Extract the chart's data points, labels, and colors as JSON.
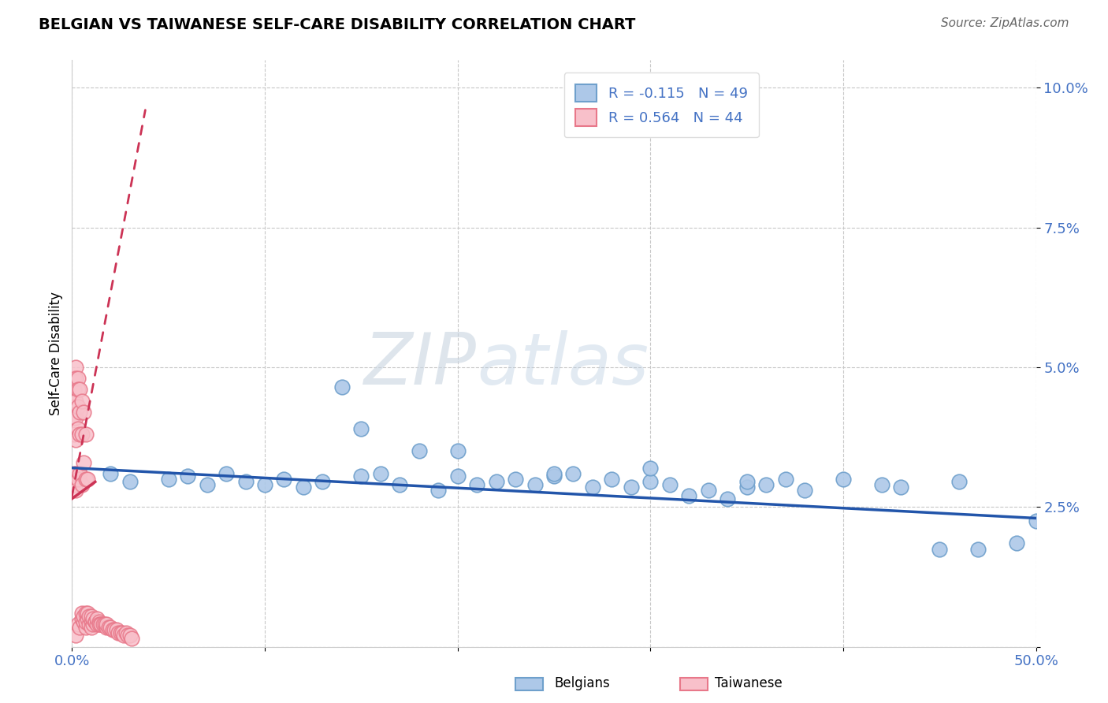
{
  "title": "BELGIAN VS TAIWANESE SELF-CARE DISABILITY CORRELATION CHART",
  "source": "Source: ZipAtlas.com",
  "ylabel": "Self-Care Disability",
  "xlim": [
    0.0,
    0.5
  ],
  "ylim": [
    0.0,
    0.105
  ],
  "yticks": [
    0.0,
    0.025,
    0.05,
    0.075,
    0.1
  ],
  "ytick_labels": [
    "",
    "2.5%",
    "5.0%",
    "7.5%",
    "10.0%"
  ],
  "xticks": [
    0.0,
    0.1,
    0.2,
    0.3,
    0.4,
    0.5
  ],
  "xtick_labels": [
    "0.0%",
    "",
    "",
    "",
    "",
    "50.0%"
  ],
  "belgian_R": -0.115,
  "belgian_N": 49,
  "taiwanese_R": 0.564,
  "taiwanese_N": 44,
  "belgian_color": "#adc8e8",
  "belgian_edge_color": "#6fa0cc",
  "taiwanese_color": "#f8c0ca",
  "taiwanese_edge_color": "#e8788a",
  "trend_belgian_color": "#2255aa",
  "trend_taiwanese_color": "#cc3355",
  "watermark": "ZIPatlas",
  "belgians_x": [
    0.02,
    0.03,
    0.05,
    0.06,
    0.07,
    0.08,
    0.09,
    0.1,
    0.11,
    0.12,
    0.13,
    0.14,
    0.15,
    0.16,
    0.17,
    0.18,
    0.19,
    0.2,
    0.21,
    0.22,
    0.23,
    0.24,
    0.25,
    0.26,
    0.27,
    0.28,
    0.29,
    0.3,
    0.31,
    0.32,
    0.33,
    0.34,
    0.35,
    0.36,
    0.37,
    0.38,
    0.15,
    0.2,
    0.25,
    0.3,
    0.35,
    0.4,
    0.43,
    0.45,
    0.47,
    0.49,
    0.5,
    0.42,
    0.46
  ],
  "belgians_y": [
    0.031,
    0.0295,
    0.03,
    0.0305,
    0.029,
    0.031,
    0.0295,
    0.029,
    0.03,
    0.0285,
    0.0295,
    0.0465,
    0.0305,
    0.031,
    0.029,
    0.035,
    0.028,
    0.0305,
    0.029,
    0.0295,
    0.03,
    0.029,
    0.0305,
    0.031,
    0.0285,
    0.03,
    0.0285,
    0.0295,
    0.029,
    0.027,
    0.028,
    0.0265,
    0.0285,
    0.029,
    0.03,
    0.028,
    0.039,
    0.035,
    0.031,
    0.032,
    0.0295,
    0.03,
    0.0285,
    0.0175,
    0.0175,
    0.0185,
    0.0225,
    0.029,
    0.0295
  ],
  "taiwanese_x": [
    0.002,
    0.003,
    0.004,
    0.005,
    0.005,
    0.006,
    0.006,
    0.007,
    0.007,
    0.007,
    0.008,
    0.008,
    0.009,
    0.009,
    0.01,
    0.01,
    0.01,
    0.011,
    0.011,
    0.012,
    0.012,
    0.013,
    0.013,
    0.014,
    0.014,
    0.015,
    0.015,
    0.016,
    0.017,
    0.018,
    0.018,
    0.019,
    0.02,
    0.021,
    0.022,
    0.023,
    0.024,
    0.025,
    0.026,
    0.027,
    0.028,
    0.029,
    0.03,
    0.031
  ],
  "taiwanese_y": [
    0.002,
    0.004,
    0.0035,
    0.005,
    0.006,
    0.0045,
    0.0055,
    0.006,
    0.0035,
    0.0045,
    0.005,
    0.006,
    0.004,
    0.0055,
    0.0045,
    0.0035,
    0.0055,
    0.004,
    0.005,
    0.0045,
    0.0045,
    0.004,
    0.005,
    0.0045,
    0.004,
    0.004,
    0.004,
    0.004,
    0.004,
    0.0035,
    0.004,
    0.0035,
    0.0035,
    0.003,
    0.003,
    0.003,
    0.0025,
    0.0025,
    0.0025,
    0.002,
    0.0025,
    0.002,
    0.002,
    0.0015
  ],
  "taiwanese_clustered_x": [
    0.001,
    0.001,
    0.001,
    0.001,
    0.001,
    0.001,
    0.001,
    0.001,
    0.002,
    0.002,
    0.002,
    0.002,
    0.002,
    0.002,
    0.002,
    0.003,
    0.003,
    0.003,
    0.003,
    0.003,
    0.004,
    0.004,
    0.004,
    0.004,
    0.005,
    0.005,
    0.005,
    0.006,
    0.006,
    0.007,
    0.007,
    0.008
  ],
  "taiwanese_clustered_y": [
    0.048,
    0.046,
    0.044,
    0.043,
    0.041,
    0.038,
    0.031,
    0.029,
    0.05,
    0.048,
    0.044,
    0.041,
    0.037,
    0.031,
    0.028,
    0.048,
    0.046,
    0.043,
    0.039,
    0.03,
    0.046,
    0.042,
    0.038,
    0.031,
    0.044,
    0.038,
    0.029,
    0.042,
    0.033,
    0.038,
    0.03,
    0.03
  ],
  "belgian_trend_x": [
    0.0,
    0.5
  ],
  "belgian_trend_y_start": 0.032,
  "belgian_trend_y_end": 0.023,
  "taiwanese_trend_x_start": 0.0,
  "taiwanese_trend_x_end": 0.038,
  "taiwanese_trend_y_start": 0.027,
  "taiwanese_trend_y_end": 0.096
}
